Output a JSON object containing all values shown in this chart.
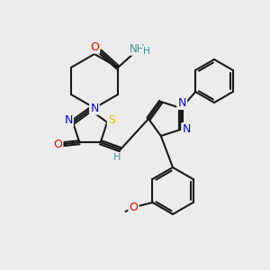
{
  "bg_color": "#ececec",
  "C": "#1a1a1a",
  "N": "#0000ee",
  "O": "#ee0000",
  "S": "#cccc00",
  "H": "#4a9090",
  "lw": 1.5,
  "fs": 8.5
}
